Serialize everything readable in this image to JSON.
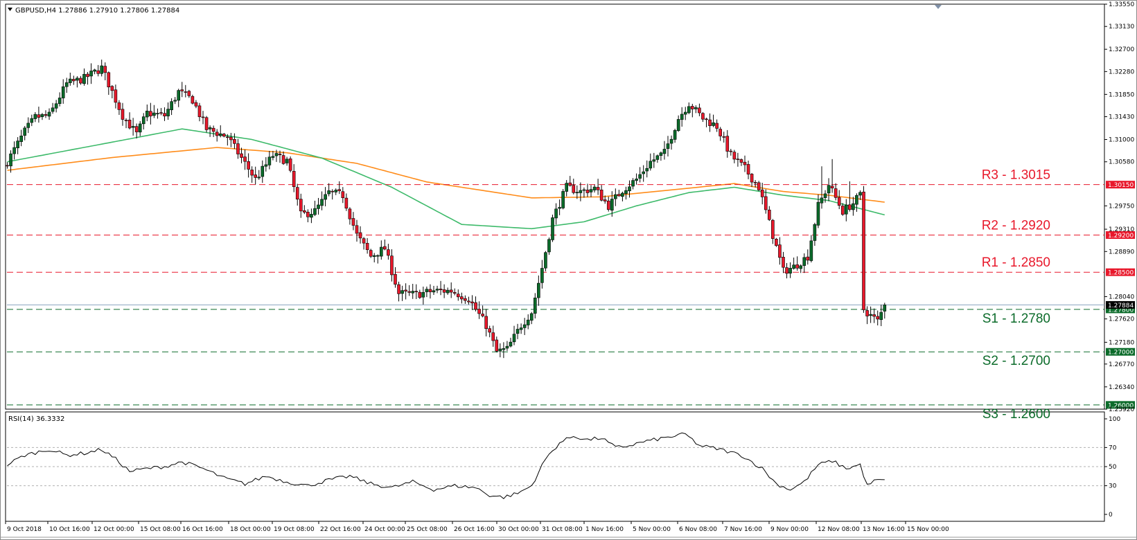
{
  "header": {
    "symbol_line": "GBPUSD,H4  1.27886 1.27910 1.27806 1.27884",
    "rsi_line": "RSI(14) 36.3332"
  },
  "colors": {
    "bull": "#0b6b2a",
    "bear": "#e8182b",
    "ma_fast": "#3dba6a",
    "ma_slow": "#ff8c1a",
    "resistance": "#e8182b",
    "support": "#0b6b2a",
    "price_line": "#8aa2bf",
    "rsi_line": "#000000"
  },
  "chart_data": {
    "type": "candlestick",
    "symbol": "GBPUSD",
    "timeframe": "H4",
    "last_quote": {
      "open": 1.27886,
      "high": 1.2791,
      "low": 1.27806,
      "close": 1.27884
    },
    "ylim": [
      1.2592,
      1.3355
    ],
    "y_ticks": [
      "1.33550",
      "1.33130",
      "1.32700",
      "1.32280",
      "1.31850",
      "1.31430",
      "1.31000",
      "1.30580",
      "1.29750",
      "1.29310",
      "1.28890",
      "1.28040",
      "1.27620",
      "1.27180",
      "1.26770",
      "1.26340",
      "1.25920"
    ],
    "x_ticks": [
      "9 Oct 2018",
      "10 Oct 16:00",
      "12 Oct 00:00",
      "15 Oct 08:00",
      "16 Oct 16:00",
      "18 Oct 00:00",
      "19 Oct 08:00",
      "22 Oct 16:00",
      "24 Oct 00:00",
      "25 Oct 08:00",
      "26 Oct 16:00",
      "30 Oct 00:00",
      "31 Oct 08:00",
      "1 Nov 16:00",
      "5 Nov 00:00",
      "6 Nov 08:00",
      "7 Nov 16:00",
      "9 Nov 00:00",
      "12 Nov 08:00",
      "13 Nov 16:00",
      "15 Nov 00:00"
    ],
    "levels": [
      {
        "label": "R3 - 1.3015",
        "value": 1.3015,
        "tag": "1.30150",
        "kind": "resistance"
      },
      {
        "label": "R2 - 1.2920",
        "value": 1.292,
        "tag": "1.29200",
        "kind": "resistance"
      },
      {
        "label": "R1 - 1.2850",
        "value": 1.285,
        "tag": "1.28500",
        "kind": "resistance"
      },
      {
        "label": "S1 - 1.2780",
        "value": 1.278,
        "tag": "1.27800",
        "kind": "support"
      },
      {
        "label": "S2 - 1.2700",
        "value": 1.27,
        "tag": "1.27000",
        "kind": "support"
      },
      {
        "label": "S3 - 1.2600",
        "value": 1.26,
        "tag": "1.26000",
        "kind": "support"
      }
    ],
    "current_price": {
      "value": 1.27884,
      "tag": "1.27884"
    },
    "close_anchors": [
      [
        0,
        1.3058
      ],
      [
        5,
        1.3115
      ],
      [
        8,
        1.3142
      ],
      [
        12,
        1.3145
      ],
      [
        17,
        1.3205
      ],
      [
        22,
        1.3215
      ],
      [
        27,
        1.3235
      ],
      [
        31,
        1.3175
      ],
      [
        33,
        1.3145
      ],
      [
        37,
        1.311
      ],
      [
        40,
        1.315
      ],
      [
        45,
        1.3145
      ],
      [
        49,
        1.319
      ],
      [
        53,
        1.3175
      ],
      [
        57,
        1.312
      ],
      [
        63,
        1.3105
      ],
      [
        67,
        1.3065
      ],
      [
        71,
        1.3025
      ],
      [
        76,
        1.307
      ],
      [
        80,
        1.306
      ],
      [
        84,
        1.2958
      ],
      [
        88,
        1.2965
      ],
      [
        92,
        1.3
      ],
      [
        96,
        1.2995
      ],
      [
        100,
        1.292
      ],
      [
        104,
        1.288
      ],
      [
        108,
        1.2895
      ],
      [
        112,
        1.281
      ],
      [
        117,
        1.2808
      ],
      [
        122,
        1.2815
      ],
      [
        127,
        1.2815
      ],
      [
        132,
        1.28
      ],
      [
        137,
        1.275
      ],
      [
        140,
        1.27
      ],
      [
        143,
        1.2705
      ],
      [
        147,
        1.275
      ],
      [
        150,
        1.2775
      ],
      [
        153,
        1.2858
      ],
      [
        156,
        1.295
      ],
      [
        160,
        1.301
      ],
      [
        164,
        1.3002
      ],
      [
        168,
        1.3008
      ],
      [
        172,
        1.2975
      ],
      [
        176,
        1.3005
      ],
      [
        180,
        1.3025
      ],
      [
        184,
        1.3058
      ],
      [
        188,
        1.3075
      ],
      [
        192,
        1.314
      ],
      [
        195,
        1.3168
      ],
      [
        199,
        1.314
      ],
      [
        203,
        1.3125
      ],
      [
        207,
        1.307
      ],
      [
        211,
        1.3045
      ],
      [
        215,
        1.301
      ],
      [
        219,
        1.292
      ],
      [
        222,
        1.2852
      ],
      [
        225,
        1.286
      ],
      [
        229,
        1.288
      ],
      [
        232,
        1.2975
      ],
      [
        235,
        1.3015
      ],
      [
        239,
        1.2965
      ],
      [
        242,
        1.298
      ],
      [
        244,
        1.2995
      ],
      [
        245,
        1.278
      ],
      [
        247,
        1.2768
      ],
      [
        249,
        1.2758
      ],
      [
        251,
        1.2788
      ]
    ],
    "ma_fast": [
      [
        0,
        1.3058
      ],
      [
        30,
        1.3095
      ],
      [
        50,
        1.312
      ],
      [
        70,
        1.31
      ],
      [
        90,
        1.3065
      ],
      [
        110,
        1.301
      ],
      [
        130,
        1.294
      ],
      [
        150,
        1.2932
      ],
      [
        165,
        1.2945
      ],
      [
        180,
        1.2975
      ],
      [
        195,
        1.3
      ],
      [
        208,
        1.301
      ],
      [
        222,
        1.2995
      ],
      [
        235,
        1.2985
      ],
      [
        251,
        1.2958
      ]
    ],
    "ma_slow": [
      [
        0,
        1.3042
      ],
      [
        30,
        1.3066
      ],
      [
        60,
        1.3085
      ],
      [
        80,
        1.3075
      ],
      [
        100,
        1.3055
      ],
      [
        120,
        1.302
      ],
      [
        150,
        1.299
      ],
      [
        170,
        1.2992
      ],
      [
        190,
        1.3005
      ],
      [
        208,
        1.3017
      ],
      [
        222,
        1.3002
      ],
      [
        235,
        1.2995
      ],
      [
        251,
        1.2982
      ]
    ],
    "rsi": {
      "ylim": [
        0,
        100
      ],
      "ticks": [
        "100",
        "70",
        "50",
        "30",
        "0"
      ],
      "points": [
        [
          0,
          52
        ],
        [
          5,
          62
        ],
        [
          12,
          68
        ],
        [
          17,
          62
        ],
        [
          22,
          64
        ],
        [
          27,
          68
        ],
        [
          31,
          58
        ],
        [
          35,
          45
        ],
        [
          40,
          48
        ],
        [
          45,
          50
        ],
        [
          50,
          55
        ],
        [
          56,
          48
        ],
        [
          62,
          38
        ],
        [
          68,
          32
        ],
        [
          74,
          40
        ],
        [
          80,
          34
        ],
        [
          86,
          30
        ],
        [
          92,
          36
        ],
        [
          98,
          40
        ],
        [
          104,
          32
        ],
        [
          110,
          28
        ],
        [
          116,
          34
        ],
        [
          122,
          26
        ],
        [
          128,
          30
        ],
        [
          134,
          28
        ],
        [
          138,
          20
        ],
        [
          142,
          18
        ],
        [
          146,
          22
        ],
        [
          150,
          30
        ],
        [
          154,
          58
        ],
        [
          158,
          75
        ],
        [
          162,
          82
        ],
        [
          166,
          78
        ],
        [
          170,
          80
        ],
        [
          174,
          70
        ],
        [
          178,
          72
        ],
        [
          182,
          76
        ],
        [
          188,
          80
        ],
        [
          194,
          84
        ],
        [
          198,
          72
        ],
        [
          204,
          68
        ],
        [
          210,
          62
        ],
        [
          216,
          48
        ],
        [
          220,
          32
        ],
        [
          224,
          26
        ],
        [
          228,
          34
        ],
        [
          232,
          52
        ],
        [
          236,
          56
        ],
        [
          240,
          48
        ],
        [
          244,
          52
        ],
        [
          246,
          30
        ],
        [
          248,
          35
        ],
        [
          251,
          36
        ]
      ]
    }
  }
}
